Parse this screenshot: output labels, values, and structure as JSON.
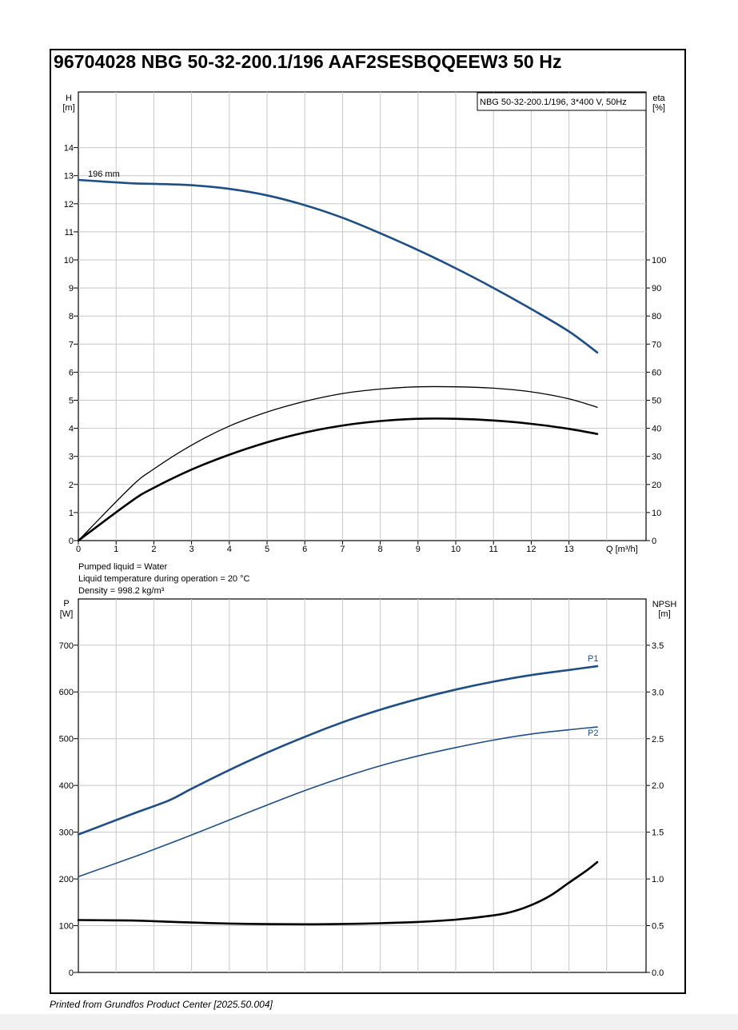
{
  "page": {
    "title": "96704028 NBG 50-32-200.1/196 AAF2SESBQQEEW3 50 Hz",
    "footer": "Printed from Grundfos Product Center [2025.50.004]",
    "info_lines": [
      "Pumped liquid = Water",
      "Liquid temperature during operation = 20 °C",
      "Density = 998.2 kg/m³"
    ]
  },
  "colors": {
    "curve_blue": "#1f4e85",
    "curve_black": "#000000",
    "grid": "#c8c8c8",
    "frame": "#000000"
  },
  "chart_data": [
    {
      "type": "line",
      "legend_box": "NBG 50-32-200.1/196, 3*400 V, 50Hz",
      "legend_placement": "top-right",
      "xlabel": "Q [m³/h]",
      "ylabel_left": [
        "H",
        "[m]"
      ],
      "ylabel_right": [
        "eta",
        "[%]"
      ],
      "xlim": [
        0,
        14.8
      ],
      "ylim_left": [
        0,
        15.7
      ],
      "ylim_right": [
        0,
        157
      ],
      "x_ticks": [
        "0",
        "1",
        "2",
        "3",
        "4",
        "5",
        "6",
        "7",
        "8",
        "9",
        "10",
        "11",
        "12",
        "13"
      ],
      "y_ticks_left": [
        "0",
        "1",
        "2",
        "3",
        "4",
        "5",
        "6",
        "7",
        "8",
        "9",
        "10",
        "11",
        "12",
        "13",
        "14"
      ],
      "y_ticks_right": [
        "0",
        "10",
        "20",
        "30",
        "40",
        "50",
        "60",
        "70",
        "80",
        "90",
        "100"
      ],
      "grid": true,
      "annotations": [
        "196 mm"
      ],
      "series": [
        {
          "axis": "left",
          "color": "#1f4e85",
          "x": [
            0,
            1.4,
            2,
            3,
            4,
            5,
            6,
            7,
            8,
            9,
            10,
            11,
            12,
            13,
            13.75
          ],
          "y": [
            12.85,
            12.73,
            12.71,
            12.66,
            12.53,
            12.3,
            11.95,
            11.5,
            10.95,
            10.35,
            9.7,
            9.0,
            8.25,
            7.45,
            6.7
          ]
        },
        {
          "axis": "right",
          "color": "#000000",
          "weight": "thin",
          "x": [
            0,
            1.4,
            2,
            3,
            4,
            5,
            6,
            7,
            8,
            9,
            10,
            11,
            12,
            13,
            13.75
          ],
          "y": [
            0,
            19.2,
            25.5,
            34,
            40.8,
            45.8,
            49.6,
            52.4,
            54,
            54.8,
            54.8,
            54.3,
            53,
            50.5,
            47.5
          ]
        },
        {
          "axis": "right",
          "color": "#000000",
          "weight": "thick",
          "x": [
            0,
            1.4,
            2,
            3,
            4,
            5,
            6,
            7,
            8,
            9,
            10,
            11,
            12,
            13,
            13.75
          ],
          "y": [
            0,
            14,
            18.8,
            25.3,
            30.6,
            35,
            38.5,
            41,
            42.6,
            43.4,
            43.4,
            42.8,
            41.6,
            39.8,
            38
          ]
        }
      ]
    },
    {
      "type": "line",
      "xlabel": "",
      "ylabel_left": [
        "P",
        "[W]"
      ],
      "ylabel_right": [
        "NPSH",
        "[m]"
      ],
      "xlim": [
        0,
        14.8
      ],
      "ylim_left": [
        0,
        760
      ],
      "ylim_right": [
        0,
        3.8
      ],
      "y_ticks_left": [
        "0",
        "100",
        "200",
        "300",
        "400",
        "500",
        "600",
        "700"
      ],
      "y_ticks_right": [
        "0.0",
        "0.5",
        "1.0",
        "1.5",
        "2.0",
        "2.5",
        "3.0",
        "3.5"
      ],
      "grid": true,
      "series": [
        {
          "name": "P1",
          "axis": "left",
          "color": "#1f4e85",
          "x": [
            0,
            1.4,
            2.4,
            3,
            4,
            5,
            6,
            7,
            8,
            9,
            10,
            11,
            12,
            13,
            13.75
          ],
          "y": [
            295,
            338,
            368,
            393,
            433,
            470,
            504,
            535,
            562,
            585,
            605,
            622,
            636,
            647,
            655
          ]
        },
        {
          "name": "P2",
          "axis": "left",
          "color": "#1f4e85",
          "x": [
            0,
            1.4,
            2,
            3,
            4,
            5,
            6,
            7,
            8,
            9,
            10,
            11,
            12,
            13,
            13.75
          ],
          "y": [
            205,
            245,
            263,
            294,
            326,
            358,
            389,
            417,
            442,
            463,
            481,
            497,
            510,
            519,
            525
          ]
        },
        {
          "axis": "right",
          "color": "#000000",
          "x": [
            0,
            1.4,
            2,
            3,
            4,
            5,
            6,
            7,
            8,
            9,
            10,
            11,
            11.5,
            12,
            12.5,
            13,
            13.5,
            13.75
          ],
          "y": [
            0.56,
            0.555,
            0.548,
            0.534,
            0.523,
            0.517,
            0.515,
            0.518,
            0.526,
            0.54,
            0.565,
            0.61,
            0.65,
            0.72,
            0.82,
            0.96,
            1.1,
            1.18
          ]
        }
      ]
    }
  ]
}
